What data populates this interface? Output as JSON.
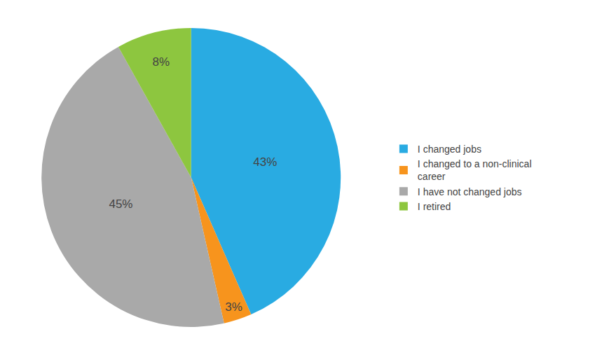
{
  "chart_data": {
    "type": "pie",
    "categories": [
      "I changed jobs",
      "I changed to a non-clinical\ncareer",
      "I have not changed jobs",
      "I retired"
    ],
    "values": [
      43,
      3,
      45,
      8
    ],
    "value_labels": [
      "43%",
      "3%",
      "45%",
      "8%"
    ],
    "colors": [
      "#29ABE2",
      "#F7941D",
      "#A9A9A9",
      "#8DC63F"
    ],
    "data_labels": true,
    "legend": "right"
  }
}
